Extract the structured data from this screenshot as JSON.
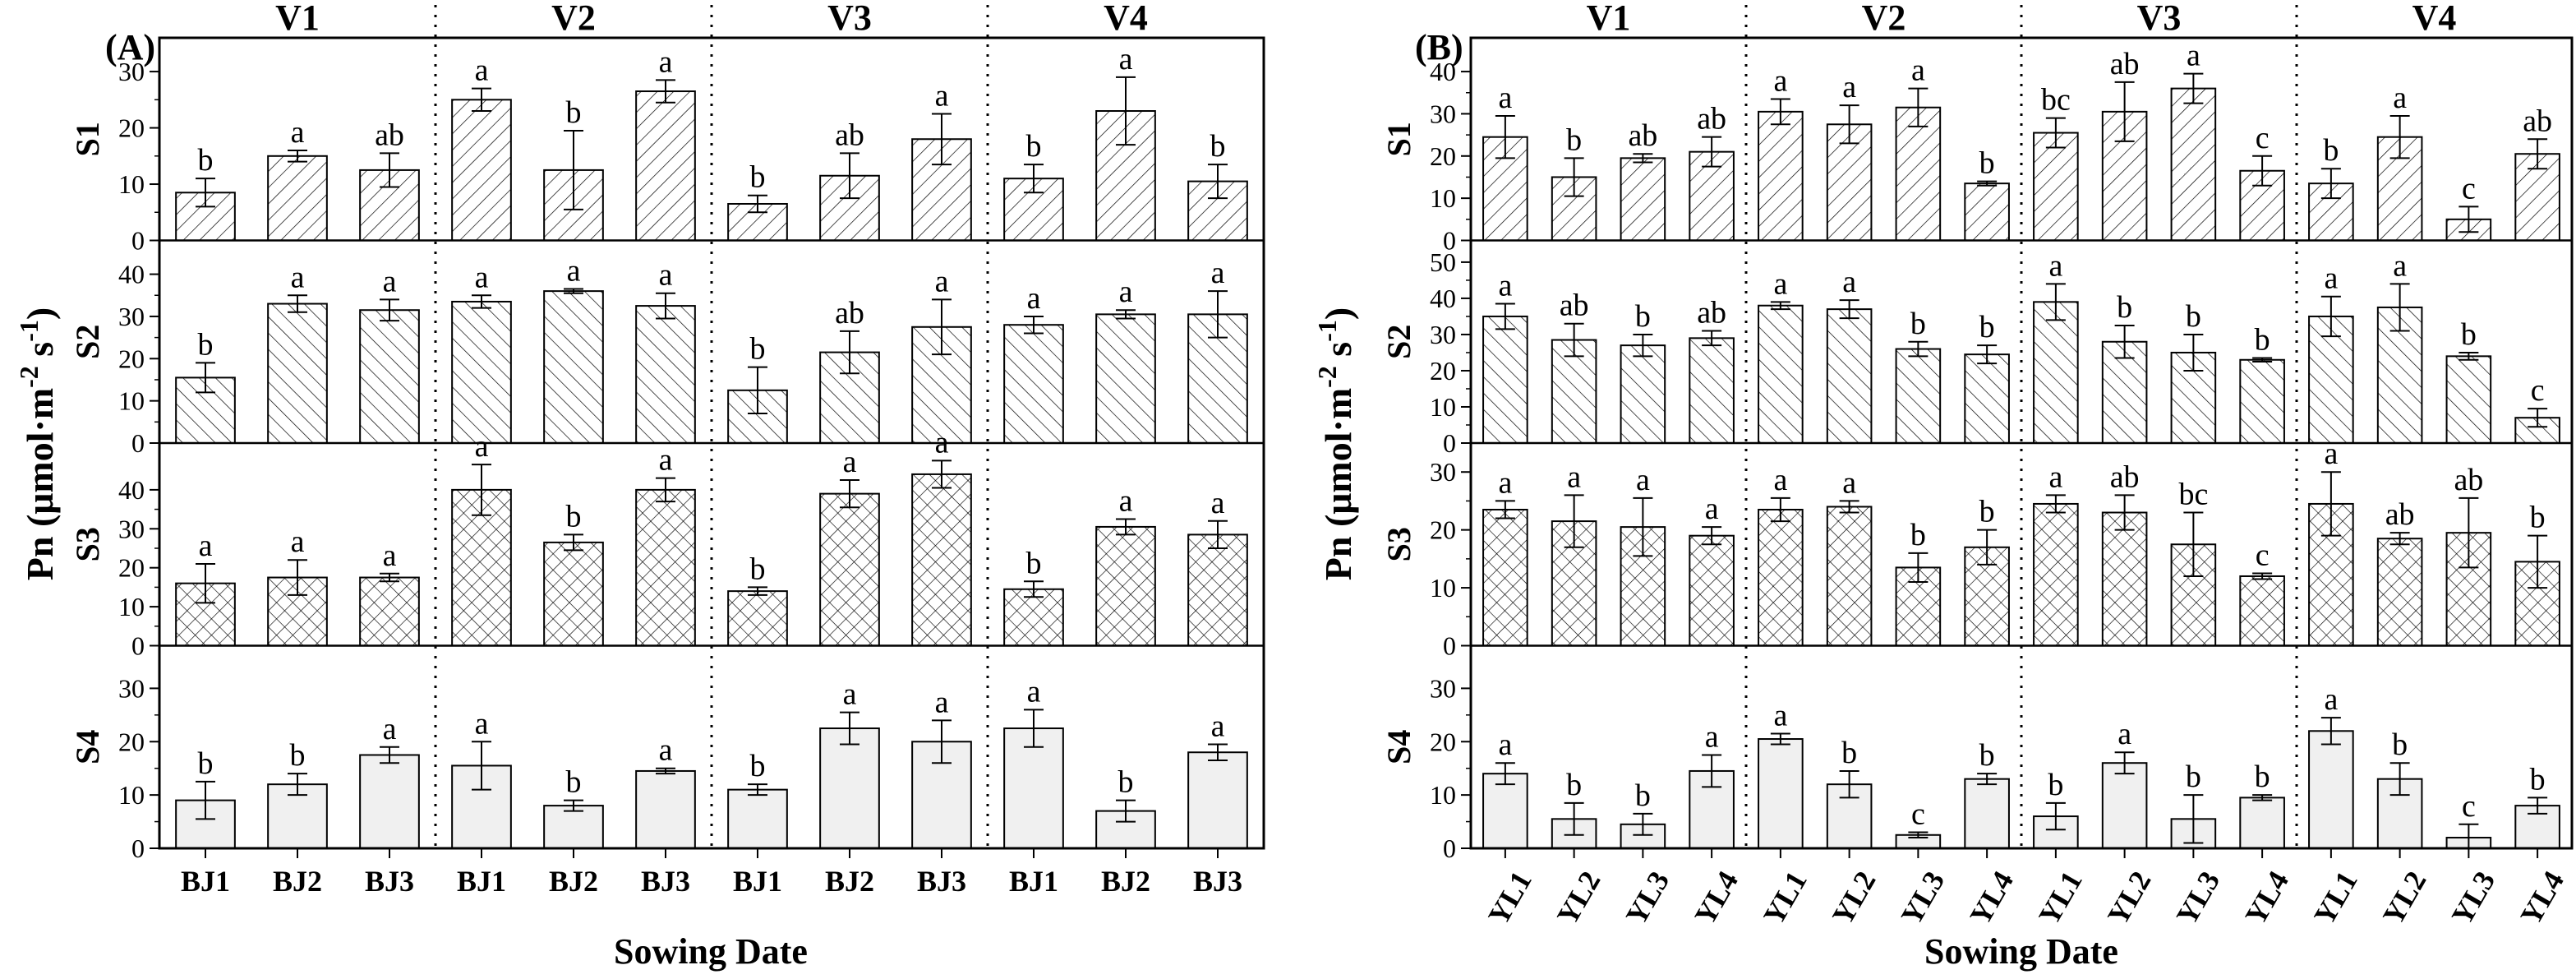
{
  "chart_data": [
    {
      "type": "bar",
      "panel_label": "(A)",
      "xlabel": "Sowing Date",
      "ylabel": "Pn (μmol·m",
      "ylabel_parts": [
        "Pn (μmol·m",
        "-2",
        " s",
        "-1",
        ")"
      ],
      "varieties": [
        "V1",
        "V2",
        "V3",
        "V4"
      ],
      "categories": [
        "BJ1",
        "BJ2",
        "BJ3"
      ],
      "rows": [
        {
          "name": "S1",
          "ylim": [
            0,
            36
          ],
          "ticks": [
            "0",
            "10",
            "20",
            "30"
          ],
          "values": [
            [
              8.5,
              15,
              12.5
            ],
            [
              25,
              12.5,
              26.5
            ],
            [
              6.5,
              11.5,
              18
            ],
            [
              11,
              23,
              10.5
            ]
          ],
          "errors": [
            [
              2.5,
              1,
              3
            ],
            [
              2,
              7,
              2
            ],
            [
              1.5,
              4,
              4.5
            ],
            [
              2.5,
              6,
              3
            ]
          ],
          "letters": [
            [
              "b",
              "a",
              "ab"
            ],
            [
              "a",
              "b",
              "a"
            ],
            [
              "b",
              "ab",
              "a"
            ],
            [
              "b",
              "a",
              "b"
            ]
          ]
        },
        {
          "name": "S2",
          "ylim": [
            0,
            48
          ],
          "ticks": [
            "0",
            "10",
            "20",
            "30",
            "40"
          ],
          "values": [
            [
              15.5,
              33,
              31.5
            ],
            [
              33.5,
              36,
              32.5
            ],
            [
              12.5,
              21.5,
              27.5
            ],
            [
              28,
              30.5,
              30.5
            ]
          ],
          "errors": [
            [
              3.5,
              2,
              2.5
            ],
            [
              1.5,
              0.5,
              3
            ],
            [
              5.5,
              5,
              6.5
            ],
            [
              2,
              1,
              5.5
            ]
          ],
          "letters": [
            [
              "b",
              "a",
              "a"
            ],
            [
              "a",
              "a",
              "a"
            ],
            [
              "b",
              "ab",
              "a"
            ],
            [
              "a",
              "a",
              "a"
            ]
          ]
        },
        {
          "name": "S3",
          "ylim": [
            0,
            52
          ],
          "ticks": [
            "0",
            "10",
            "20",
            "30",
            "40"
          ],
          "values": [
            [
              16,
              17.5,
              17.5
            ],
            [
              40,
              26.5,
              40
            ],
            [
              14,
              39,
              44
            ],
            [
              14.5,
              30.5,
              28.5
            ]
          ],
          "errors": [
            [
              5,
              4.5,
              1
            ],
            [
              6.5,
              2,
              3
            ],
            [
              1,
              3.5,
              3.5
            ],
            [
              2,
              2,
              3.5
            ]
          ],
          "letters": [
            [
              "a",
              "a",
              "a"
            ],
            [
              "a",
              "b",
              "a"
            ],
            [
              "b",
              "a",
              "a"
            ],
            [
              "b",
              "a",
              "a"
            ]
          ]
        },
        {
          "name": "S4",
          "ylim": [
            0,
            38
          ],
          "ticks": [
            "0",
            "10",
            "20",
            "30"
          ],
          "values": [
            [
              9,
              12,
              17.5
            ],
            [
              15.5,
              8,
              14.5
            ],
            [
              11,
              22.5,
              20
            ],
            [
              22.5,
              7,
              18
            ]
          ],
          "errors": [
            [
              3.5,
              2,
              1.5
            ],
            [
              4.5,
              1,
              0.5
            ],
            [
              1,
              3,
              4
            ],
            [
              3.5,
              2,
              1.5
            ]
          ],
          "letters": [
            [
              "b",
              "b",
              "a"
            ],
            [
              "a",
              "b",
              "a"
            ],
            [
              "b",
              "a",
              "a"
            ],
            [
              "a",
              "b",
              "a"
            ]
          ]
        }
      ]
    },
    {
      "type": "bar",
      "panel_label": "(B)",
      "xlabel": "Sowing Date",
      "ylabel": "Pn (μmol·m",
      "ylabel_parts": [
        "Pn (μmol·m",
        "-2",
        " s",
        "-1",
        ")"
      ],
      "varieties": [
        "V1",
        "V2",
        "V3",
        "V4"
      ],
      "categories": [
        "YL1",
        "YL2",
        "YL3",
        "YL4"
      ],
      "rows": [
        {
          "name": "S1",
          "ylim": [
            0,
            48
          ],
          "ticks": [
            "0",
            "10",
            "20",
            "30",
            "40"
          ],
          "values": [
            [
              24.5,
              15,
              19.5,
              21
            ],
            [
              30.5,
              27.5,
              31.5,
              13.5
            ],
            [
              25.5,
              30.5,
              36,
              16.5
            ],
            [
              13.5,
              24.5,
              5,
              20.5
            ]
          ],
          "errors": [
            [
              5,
              4.5,
              1,
              3.5
            ],
            [
              3,
              4.5,
              4.5,
              0.5
            ],
            [
              3.5,
              7,
              3.5,
              3.5
            ],
            [
              3.5,
              5,
              3,
              3.5
            ]
          ],
          "letters": [
            [
              "a",
              "b",
              "ab",
              "ab"
            ],
            [
              "a",
              "a",
              "a",
              "b"
            ],
            [
              "bc",
              "ab",
              "a",
              "c"
            ],
            [
              "b",
              "a",
              "c",
              "ab"
            ]
          ]
        },
        {
          "name": "S2",
          "ylim": [
            0,
            56
          ],
          "ticks": [
            "0",
            "10",
            "20",
            "30",
            "40",
            "50"
          ],
          "values": [
            [
              35,
              28.5,
              27,
              29
            ],
            [
              38,
              37,
              26,
              24.5
            ],
            [
              39,
              28,
              25,
              23
            ],
            [
              35,
              37.5,
              24,
              7
            ]
          ],
          "errors": [
            [
              3.5,
              4.5,
              3,
              2
            ],
            [
              1,
              2.5,
              2,
              2.5
            ],
            [
              5,
              4.5,
              5,
              0.5
            ],
            [
              5.5,
              6.5,
              1,
              2.5
            ]
          ],
          "letters": [
            [
              "a",
              "ab",
              "b",
              "ab"
            ],
            [
              "a",
              "a",
              "b",
              "b"
            ],
            [
              "a",
              "b",
              "b",
              "b"
            ],
            [
              "a",
              "a",
              "b",
              "c"
            ]
          ]
        },
        {
          "name": "S3",
          "ylim": [
            0,
            35
          ],
          "ticks": [
            "0",
            "10",
            "20",
            "30"
          ],
          "values": [
            [
              23.5,
              21.5,
              20.5,
              19
            ],
            [
              23.5,
              24,
              13.5,
              17
            ],
            [
              24.5,
              23,
              17.5,
              12
            ],
            [
              24.5,
              18.5,
              19.5,
              14.5
            ]
          ],
          "errors": [
            [
              1.5,
              4.5,
              5,
              1.5
            ],
            [
              2,
              1,
              2.5,
              3
            ],
            [
              1.5,
              3,
              5.5,
              0.5
            ],
            [
              5.5,
              1,
              6,
              4.5
            ]
          ],
          "letters": [
            [
              "a",
              "a",
              "a",
              "a"
            ],
            [
              "a",
              "a",
              "b",
              "b"
            ],
            [
              "a",
              "ab",
              "bc",
              "c"
            ],
            [
              "a",
              "ab",
              "ab",
              "b"
            ]
          ]
        },
        {
          "name": "S4",
          "ylim": [
            0,
            38
          ],
          "ticks": [
            "0",
            "10",
            "20",
            "30"
          ],
          "values": [
            [
              14,
              5.5,
              4.5,
              14.5
            ],
            [
              20.5,
              12,
              2.5,
              13
            ],
            [
              6,
              16,
              5.5,
              9.5
            ],
            [
              22,
              13,
              2,
              8
            ]
          ],
          "errors": [
            [
              2,
              3,
              2,
              3
            ],
            [
              1,
              2.5,
              0.5,
              1
            ],
            [
              2.5,
              2,
              4.5,
              0.5
            ],
            [
              2.5,
              3,
              2.5,
              1.5
            ]
          ],
          "letters": [
            [
              "a",
              "b",
              "b",
              "a"
            ],
            [
              "a",
              "b",
              "c",
              "b"
            ],
            [
              "b",
              "a",
              "b",
              "b"
            ],
            [
              "a",
              "b",
              "c",
              "b"
            ]
          ]
        }
      ]
    }
  ]
}
